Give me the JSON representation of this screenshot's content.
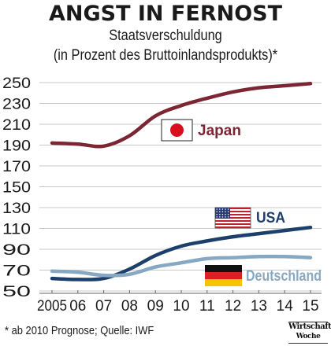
{
  "header": {
    "title": "ANGST IN FERNOST",
    "subtitle_line1": "Staatsverschuldung",
    "subtitle_line2": "(in Prozent des Bruttoinlandsprodukts)*"
  },
  "footer": {
    "note": "* ab 2010 Prognose; Quelle: IWF",
    "logo_line1": "Wirtschafts",
    "logo_line2": "Woche"
  },
  "colors": {
    "japan": "#7b2632",
    "usa": "#1d3f6b",
    "deutschland": "#87a8c2",
    "grid": "#c9c9c9",
    "text": "#1a1a1a"
  },
  "chart_data": {
    "type": "line",
    "title": "ANGST IN FERNOST",
    "subtitle": "Staatsverschuldung (in Prozent des Bruttoinlandsprodukts)*",
    "categories": [
      "2005",
      "06",
      "07",
      "08",
      "09",
      "10",
      "11",
      "12",
      "13",
      "14",
      "15"
    ],
    "x": [
      2005,
      2006,
      2007,
      2008,
      2009,
      2010,
      2011,
      2012,
      2013,
      2014,
      2015
    ],
    "ylim": [
      50,
      250
    ],
    "yticks": [
      50,
      70,
      90,
      110,
      130,
      150,
      170,
      190,
      210,
      230,
      250
    ],
    "grid": true,
    "series": [
      {
        "name": "Japan",
        "values": [
          192,
          191,
          189,
          199,
          218,
          228,
          235,
          241,
          245,
          247,
          249
        ],
        "flag": "japan-flag"
      },
      {
        "name": "USA",
        "values": [
          62,
          61,
          62,
          71,
          84,
          93,
          98,
          102,
          105,
          108,
          111
        ],
        "flag": "usa-flag"
      },
      {
        "name": "Deutschland",
        "values": [
          69,
          68,
          65,
          66,
          73,
          77,
          81,
          82,
          83,
          83,
          82
        ],
        "flag": "germany-flag"
      }
    ]
  }
}
